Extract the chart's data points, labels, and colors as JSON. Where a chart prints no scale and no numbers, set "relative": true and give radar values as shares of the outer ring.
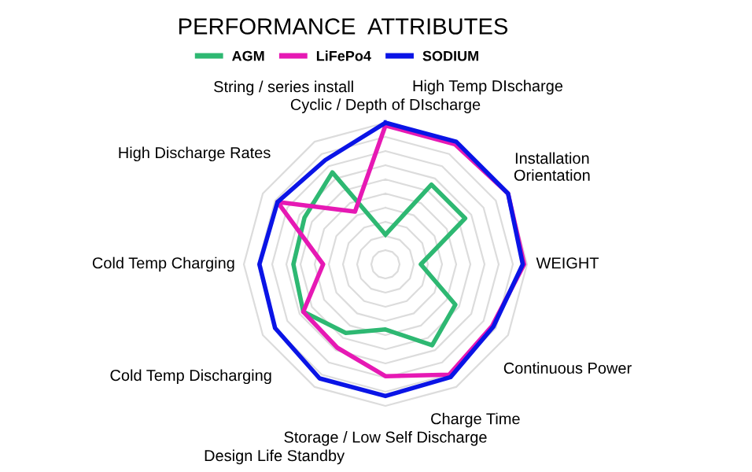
{
  "chart_data": {
    "type": "radar",
    "title": "PERFORMANCE  ATTRIBUTES",
    "relative": true,
    "grid": true,
    "legend": "top",
    "categories": [
      "Cyclic / Depth of DIscharge",
      "High Temp DIscharge",
      "Installation\nOrientation",
      "WEIGHT",
      "Continuous Power",
      "Charge Time",
      "Storage / Low Self Discharge",
      "Design Life Standby",
      "Cold Temp Discharging",
      "Cold Temp Charging",
      "High Discharge Rates",
      "String / series install"
    ],
    "series": [
      {
        "name": "AGM",
        "color": "#2eb872",
        "values": [
          0.21,
          0.65,
          0.65,
          0.25,
          0.57,
          0.66,
          0.46,
          0.56,
          0.67,
          0.65,
          0.66,
          0.75
        ]
      },
      {
        "name": "LiFePo4",
        "color": "#e619b4",
        "values": [
          0.98,
          0.98,
          1.0,
          0.98,
          0.87,
          0.9,
          0.79,
          0.68,
          0.67,
          0.44,
          0.88,
          0.43
        ]
      },
      {
        "name": "SODIUM",
        "color": "#0a14e6",
        "values": [
          1.0,
          1.0,
          1.0,
          0.97,
          0.88,
          0.92,
          0.93,
          0.93,
          0.9,
          0.89,
          0.88,
          0.85
        ]
      }
    ]
  }
}
